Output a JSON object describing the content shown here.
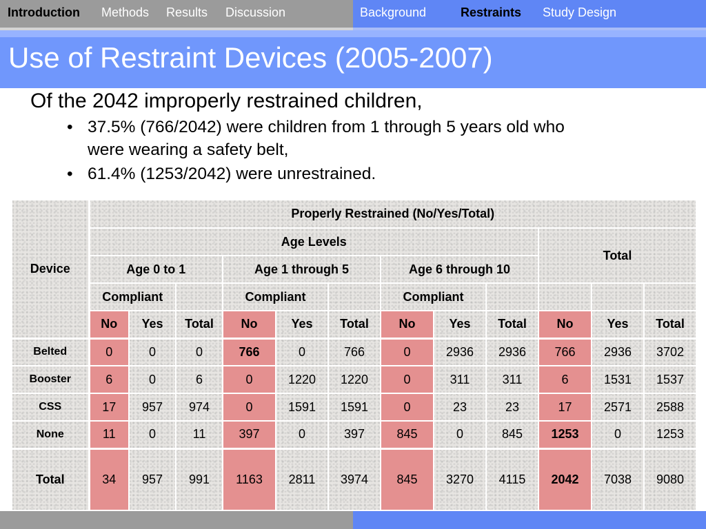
{
  "nav": {
    "left_items": [
      "Introduction",
      "Methods",
      "Results",
      "Discussion"
    ],
    "right_items": [
      "Background",
      "Restraints",
      "Study Design"
    ],
    "active_left": "Introduction",
    "active_right": "Restraints"
  },
  "title": "Use of Restraint Devices (2005-2007)",
  "intro": "Of the 2042 improperly restrained children,",
  "bullets": [
    "37.5% (766/2042) were children from 1 through 5 years old who",
    "were wearing a safety belt,",
    "61.4% (1253/2042) were unrestrained."
  ],
  "table": {
    "header_top": "Properly Restrained (No/Yes/Total)",
    "device_label": "Device",
    "age_levels_label": "Age Levels",
    "total_label": "Total",
    "age_groups": [
      "Age 0 to 1",
      "Age 1 through 5",
      "Age 6 through 10"
    ],
    "compliant_label": "Compliant",
    "sub_headers": [
      "No",
      "Yes",
      "Total",
      "No",
      "Yes",
      "Total",
      "No",
      "Yes",
      "Total",
      "No",
      "Yes",
      "Total"
    ],
    "rows": [
      {
        "device": "Belted",
        "values": [
          "0",
          "0",
          "0",
          "766",
          "0",
          "766",
          "0",
          "2936",
          "2936",
          "766",
          "2936",
          "3702"
        ]
      },
      {
        "device": "Booster",
        "values": [
          "6",
          "0",
          "6",
          "0",
          "1220",
          "1220",
          "0",
          "311",
          "311",
          "6",
          "1531",
          "1537"
        ]
      },
      {
        "device": "CSS",
        "values": [
          "17",
          "957",
          "974",
          "0",
          "1591",
          "1591",
          "0",
          "23",
          "23",
          "17",
          "2571",
          "2588"
        ]
      },
      {
        "device": "None",
        "values": [
          "11",
          "0",
          "11",
          "397",
          "0",
          "397",
          "845",
          "0",
          "845",
          "1253",
          "0",
          "1253"
        ]
      }
    ],
    "total_row": {
      "device": "Total",
      "values": [
        "34",
        "957",
        "991",
        "1163",
        "2811",
        "3974",
        "845",
        "3270",
        "4115",
        "2042",
        "7038",
        "9080"
      ]
    }
  },
  "colors": {
    "nav_gray": "#9b9b9b",
    "nav_blue": "#5f86f5",
    "title_blue": "#7097fc",
    "highlight_pink": "#e49090"
  }
}
